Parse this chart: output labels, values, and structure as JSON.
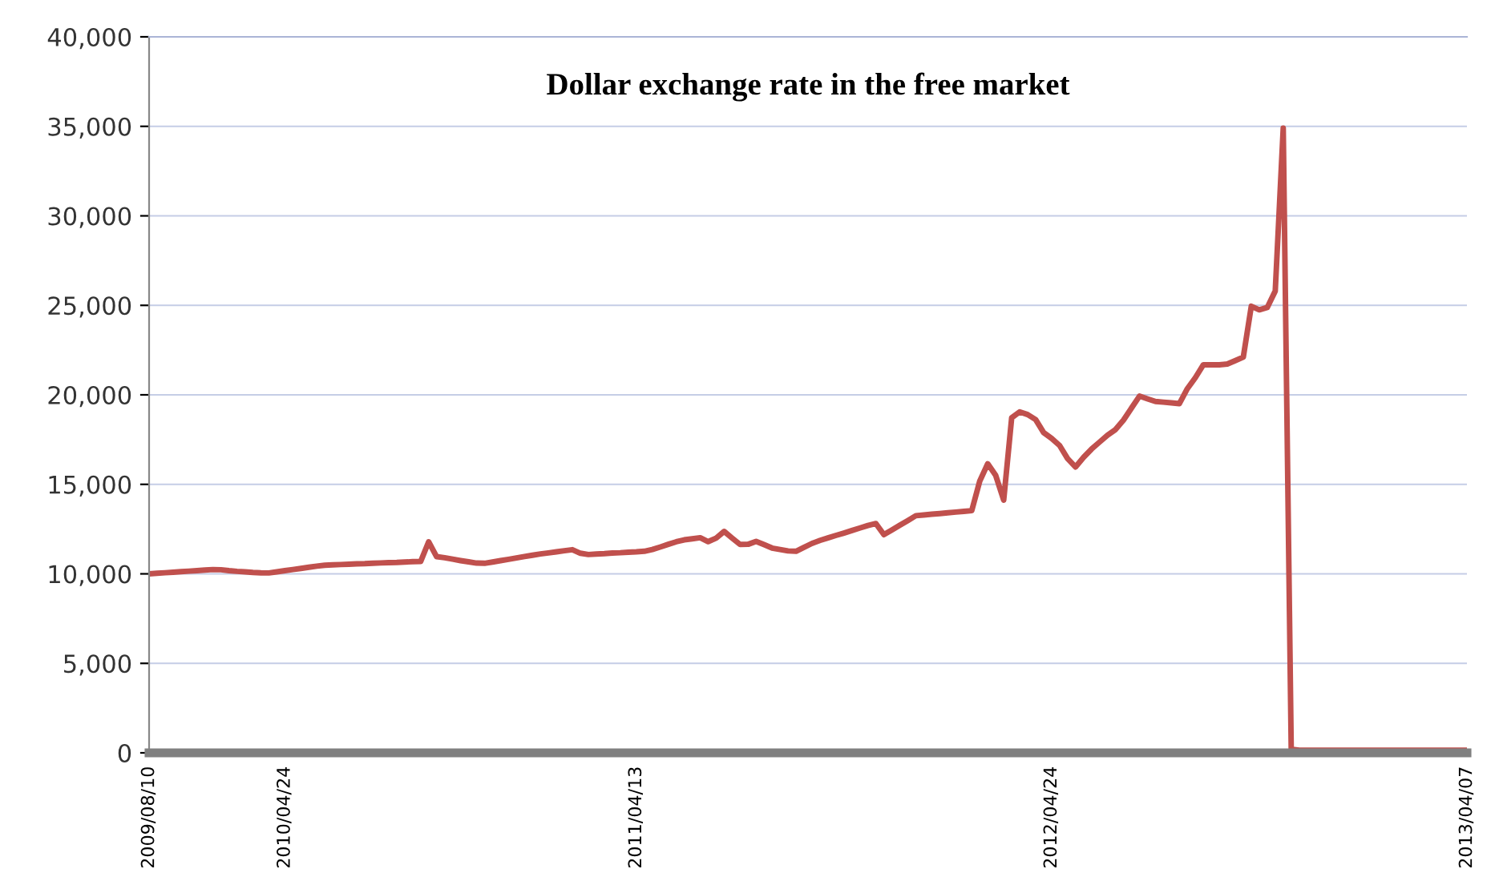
{
  "chart_data": {
    "type": "line",
    "title": "Dollar exchange rate in the free market",
    "categories": [
      "2009/08/10",
      null,
      null,
      null,
      null,
      null,
      null,
      null,
      null,
      null,
      null,
      null,
      null,
      null,
      null,
      null,
      null,
      "2010/04/24",
      null,
      null,
      null,
      null,
      null,
      null,
      null,
      null,
      null,
      null,
      null,
      null,
      null,
      null,
      null,
      null,
      null,
      null,
      null,
      null,
      null,
      null,
      null,
      null,
      null,
      null,
      null,
      null,
      null,
      null,
      null,
      null,
      null,
      null,
      null,
      null,
      null,
      null,
      null,
      null,
      null,
      null,
      null,
      "2011/04/13",
      null,
      null,
      null,
      null,
      null,
      null,
      null,
      null,
      null,
      null,
      null,
      null,
      null,
      null,
      null,
      null,
      null,
      null,
      null,
      null,
      null,
      null,
      null,
      null,
      null,
      null,
      null,
      null,
      null,
      null,
      null,
      null,
      null,
      null,
      null,
      null,
      null,
      null,
      null,
      null,
      null,
      null,
      null,
      null,
      null,
      null,
      null,
      null,
      null,
      null,
      null,
      "2012/04/24",
      null,
      null,
      null,
      null,
      null,
      null,
      null,
      null,
      null,
      null,
      null,
      null,
      null,
      null,
      null,
      null,
      null,
      null,
      null,
      null,
      null,
      null,
      null,
      null,
      null,
      null,
      null,
      null,
      null,
      null,
      null,
      null,
      null,
      null,
      null,
      null,
      null,
      null,
      null,
      null,
      null,
      null,
      null,
      null,
      null,
      null,
      null,
      null,
      null,
      null,
      null,
      "2013/04/07"
    ],
    "series": [
      {
        "color": "#c0504d",
        "values": [
          10000,
          10030,
          10060,
          10090,
          10120,
          10150,
          10180,
          10210,
          10240,
          10230,
          10180,
          10140,
          10110,
          10080,
          10060,
          10050,
          10110,
          10180,
          10240,
          10300,
          10370,
          10430,
          10480,
          10500,
          10520,
          10540,
          10560,
          10570,
          10590,
          10610,
          10630,
          10640,
          10660,
          10680,
          10690,
          11790,
          10960,
          10900,
          10820,
          10740,
          10670,
          10600,
          10590,
          10660,
          10740,
          10810,
          10890,
          10970,
          11040,
          11110,
          11170,
          11230,
          11290,
          11350,
          11150,
          11080,
          11110,
          11130,
          11160,
          11180,
          11210,
          11230,
          11260,
          11360,
          11500,
          11650,
          11790,
          11900,
          11960,
          12020,
          11800,
          12000,
          12370,
          12000,
          11640,
          11650,
          11810,
          11630,
          11440,
          11360,
          11280,
          11260,
          11480,
          11700,
          11870,
          12010,
          12150,
          12280,
          12420,
          12560,
          12700,
          12810,
          12190,
          12450,
          12720,
          12980,
          13250,
          13290,
          13330,
          13370,
          13410,
          13450,
          13490,
          13530,
          15180,
          16150,
          15500,
          14120,
          18720,
          19050,
          18900,
          18620,
          17890,
          17570,
          17170,
          16440,
          15970,
          16510,
          16970,
          17360,
          17750,
          18060,
          18590,
          19260,
          19930,
          19780,
          19630,
          19590,
          19550,
          19510,
          20350,
          20960,
          21680,
          21680,
          21680,
          21720,
          21910,
          22110,
          24950,
          24750,
          24880,
          25800,
          34900,
          200,
          150,
          150,
          150,
          150,
          150,
          150,
          150,
          150,
          150,
          150,
          150,
          150,
          150,
          150,
          150,
          150,
          150,
          150,
          150,
          150,
          150,
          150
        ]
      }
    ],
    "ylim": [
      0,
      40000
    ],
    "yticks": [
      {
        "value": 0,
        "label": "0"
      },
      {
        "value": 5000,
        "label": "5,000"
      },
      {
        "value": 10000,
        "label": "10,000"
      },
      {
        "value": 15000,
        "label": "15,000"
      },
      {
        "value": 20000,
        "label": "20,000"
      },
      {
        "value": 25000,
        "label": "25,000"
      },
      {
        "value": 30000,
        "label": "30,000"
      },
      {
        "value": 35000,
        "label": "35,000"
      },
      {
        "value": 40000,
        "label": "40,000"
      }
    ],
    "grid": "y",
    "marker": "none",
    "line_style": "solid"
  }
}
